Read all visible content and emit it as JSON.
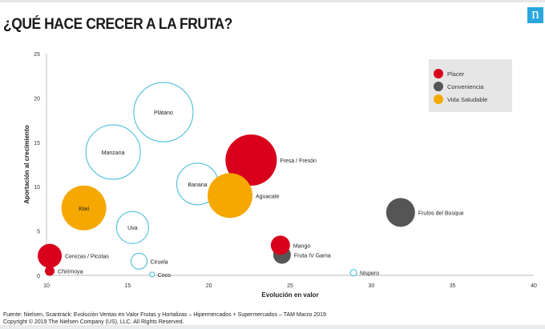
{
  "header": {
    "title": "¿QUÉ HACE CRECER A LA FRUTA?",
    "logo": "n"
  },
  "footer": {
    "source": "Fuente: Nielsen, Scantrack: Evolución Ventas en Valor Frutas y Hortalizas – Hipermercados + Supermercados – TAM Marzo 2019",
    "copyright": "Copyright © 2019 The Nielsen Company (US), LLC. All Rights Reserved."
  },
  "chart_data": {
    "type": "scatter",
    "variant": "bubble",
    "title": "",
    "xlabel": "Evolución en valor",
    "ylabel": "Aportación al crecimiento",
    "xlim": [
      10,
      40
    ],
    "ylim": [
      0,
      25
    ],
    "xticks": [
      10,
      15,
      20,
      25,
      30,
      35,
      40
    ],
    "yticks": [
      0,
      5,
      10,
      15,
      20,
      25
    ],
    "grid": false,
    "legend": {
      "placement": "top-right",
      "entries": [
        {
          "name": "Placer",
          "color": "#d9001b"
        },
        {
          "name": "Conveniencia",
          "color": "#555555"
        },
        {
          "name": "Vida Saludable",
          "color": "#f5a800"
        }
      ]
    },
    "outline_color": "#3cb8d8",
    "points": [
      {
        "label": "Plátano",
        "x": 17.2,
        "y": 18.4,
        "size": 37,
        "category": "",
        "label_pos": "inside"
      },
      {
        "label": "Manzana",
        "x": 14.1,
        "y": 13.9,
        "size": 34,
        "category": "",
        "label_pos": "inside"
      },
      {
        "label": "Fresa / Fresón",
        "x": 22.6,
        "y": 13.0,
        "size": 32,
        "category": "Placer",
        "label_pos": "right"
      },
      {
        "label": "Banana",
        "x": 19.3,
        "y": 10.3,
        "size": 26,
        "category": "",
        "label_pos": "inside"
      },
      {
        "label": "Aguacate",
        "x": 21.3,
        "y": 9.0,
        "size": 28,
        "category": "Vida Saludable",
        "label_pos": "right"
      },
      {
        "label": "Kiwi",
        "x": 12.3,
        "y": 7.6,
        "size": 28,
        "category": "Vida Saludable",
        "label_pos": "inside"
      },
      {
        "label": "Frutos del Bosque",
        "x": 31.8,
        "y": 7.1,
        "size": 18,
        "category": "Conveniencia",
        "label_pos": "right"
      },
      {
        "label": "Uva",
        "x": 15.3,
        "y": 5.4,
        "size": 20,
        "category": "",
        "label_pos": "inside"
      },
      {
        "label": "Fruta IV Gama",
        "x": 24.5,
        "y": 2.3,
        "size": 11,
        "category": "Conveniencia",
        "label_pos": "right"
      },
      {
        "label": "Mango",
        "x": 24.4,
        "y": 3.4,
        "size": 12,
        "category": "Placer",
        "label_pos": "right"
      },
      {
        "label": "Cerezas / Picotas",
        "x": 10.2,
        "y": 2.2,
        "size": 15,
        "category": "Placer",
        "label_pos": "right"
      },
      {
        "label": "Ciruela",
        "x": 15.7,
        "y": 1.6,
        "size": 10,
        "category": "",
        "label_pos": "right"
      },
      {
        "label": "Chirimoya",
        "x": 10.2,
        "y": 0.5,
        "size": 6,
        "category": "Placer",
        "label_pos": "right"
      },
      {
        "label": "Coco",
        "x": 16.5,
        "y": 0.1,
        "size": 3,
        "category": "",
        "label_pos": "right"
      },
      {
        "label": "Nispero",
        "x": 28.9,
        "y": 0.3,
        "size": 4,
        "category": "",
        "label_pos": "right"
      }
    ]
  }
}
